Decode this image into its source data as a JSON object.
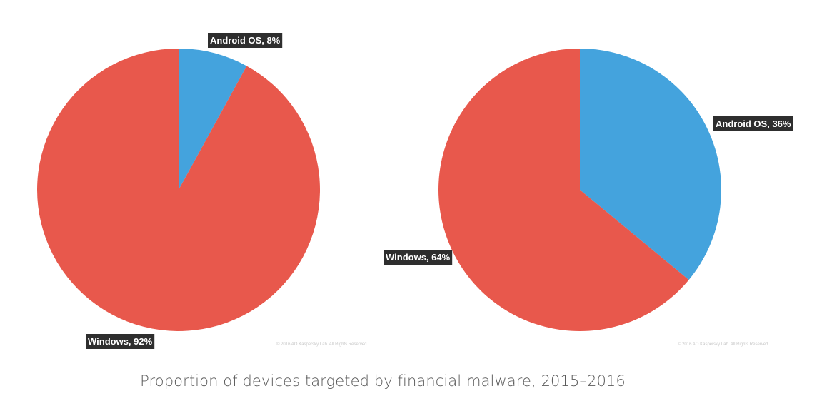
{
  "caption": "Proportion of devices targeted by financial malware, 2015–2016",
  "colors": {
    "windows": "#e8584c",
    "android": "#44a3dd",
    "label_bg": "#2e2e2e",
    "label_text": "#ffffff"
  },
  "chart_data": [
    {
      "type": "pie",
      "categories": [
        "Android OS",
        "Windows"
      ],
      "values": [
        8,
        92
      ],
      "labels": [
        "Android OS, 8%",
        "Windows, 92%"
      ],
      "colors": [
        "#44a3dd",
        "#e8584c"
      ],
      "start": "top",
      "direction": "clockwise",
      "watermark": "© 2016 AO Kaspersky Lab. All Rights Reserved."
    },
    {
      "type": "pie",
      "categories": [
        "Android OS",
        "Windows"
      ],
      "values": [
        36,
        64
      ],
      "labels": [
        "Android OS, 36%",
        "Windows, 64%"
      ],
      "colors": [
        "#44a3dd",
        "#e8584c"
      ],
      "start": "top",
      "direction": "clockwise",
      "watermark": "© 2016 AO Kaspersky Lab. All Rights Reserved."
    }
  ]
}
